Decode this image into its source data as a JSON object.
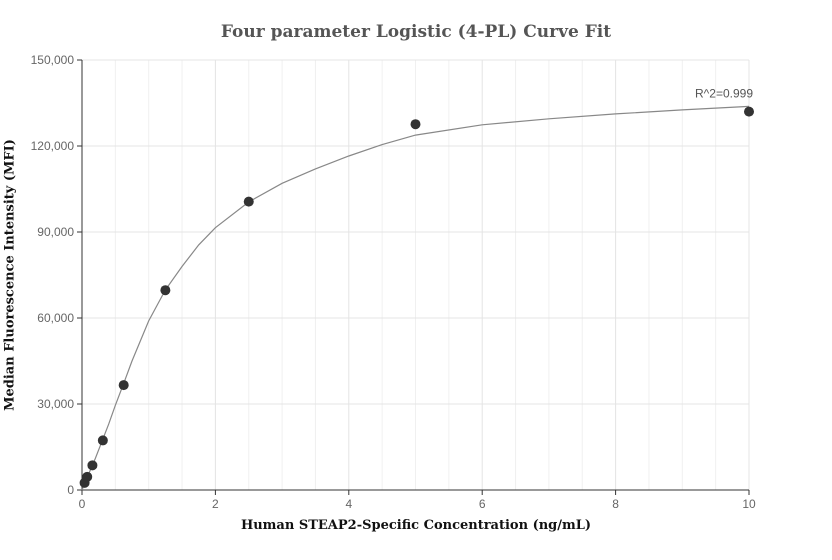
{
  "chart_data": {
    "type": "scatter",
    "title": "Four parameter Logistic (4-PL) Curve Fit",
    "xlabel": "Human STEAP2-Specific Concentration (ng/mL)",
    "ylabel": "Median Fluorescence Intensity (MFI)",
    "xlim": [
      0,
      10
    ],
    "ylim": [
      0,
      150000
    ],
    "x_ticks": [
      0,
      2,
      4,
      6,
      8,
      10
    ],
    "y_ticks": [
      0,
      30000,
      60000,
      90000,
      120000,
      150000
    ],
    "x_tick_labels": [
      "0",
      "2",
      "4",
      "6",
      "8",
      "10"
    ],
    "y_tick_labels": [
      "0",
      "30,000",
      "60,000",
      "90,000",
      "120,000",
      "150,000"
    ],
    "grid": true,
    "series": [
      {
        "type": "scatter",
        "color": "#333333",
        "points": [
          {
            "x": 0.039,
            "y": 2500
          },
          {
            "x": 0.078,
            "y": 4600
          },
          {
            "x": 0.156,
            "y": 8600
          },
          {
            "x": 0.3125,
            "y": 17300
          },
          {
            "x": 0.625,
            "y": 36600
          },
          {
            "x": 1.25,
            "y": 69700
          },
          {
            "x": 2.5,
            "y": 100600
          },
          {
            "x": 5,
            "y": 127600
          },
          {
            "x": 10,
            "y": 132000
          }
        ]
      },
      {
        "type": "line",
        "color": "#888888",
        "points": [
          {
            "x": 0,
            "y": 0
          },
          {
            "x": 0.1,
            "y": 5600
          },
          {
            "x": 0.2,
            "y": 11000
          },
          {
            "x": 0.3,
            "y": 17000
          },
          {
            "x": 0.4,
            "y": 23000
          },
          {
            "x": 0.5,
            "y": 29500
          },
          {
            "x": 0.625,
            "y": 37200
          },
          {
            "x": 0.75,
            "y": 45000
          },
          {
            "x": 1.0,
            "y": 59000
          },
          {
            "x": 1.25,
            "y": 69800
          },
          {
            "x": 1.5,
            "y": 78000
          },
          {
            "x": 1.75,
            "y": 85500
          },
          {
            "x": 2.0,
            "y": 91500
          },
          {
            "x": 2.5,
            "y": 100500
          },
          {
            "x": 3.0,
            "y": 107000
          },
          {
            "x": 3.5,
            "y": 112000
          },
          {
            "x": 4.0,
            "y": 116500
          },
          {
            "x": 4.5,
            "y": 120500
          },
          {
            "x": 5.0,
            "y": 123800
          },
          {
            "x": 6.0,
            "y": 127400
          },
          {
            "x": 7.0,
            "y": 129500
          },
          {
            "x": 8.0,
            "y": 131200
          },
          {
            "x": 9.0,
            "y": 132600
          },
          {
            "x": 10.0,
            "y": 133800
          }
        ]
      }
    ],
    "annotations": [
      {
        "text": "R^2=0.999",
        "x": 10,
        "y": 133800
      }
    ]
  }
}
